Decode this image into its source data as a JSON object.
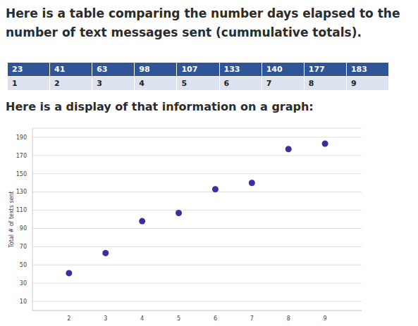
{
  "heading": "Here is a table comparing the number days elapsed to the number of text messages sent (cummulative totals).",
  "table": {
    "rows": [
      [
        23,
        41,
        63,
        98,
        107,
        133,
        140,
        177,
        183
      ],
      [
        1,
        2,
        3,
        4,
        5,
        6,
        7,
        8,
        9
      ]
    ]
  },
  "caption": "Here is a display of that information on a graph:",
  "chart_data": {
    "type": "scatter",
    "y_label": "Total # of texts sent",
    "x": [
      2,
      3,
      4,
      5,
      6,
      7,
      8,
      9
    ],
    "values": [
      41,
      63,
      98,
      107,
      133,
      140,
      177,
      183
    ],
    "color": "#3b2f9e",
    "marker": "circle",
    "xlim": [
      1,
      10
    ],
    "xticks": [
      2,
      3,
      4,
      5,
      6,
      7,
      8,
      9
    ],
    "ylim": [
      0,
      200
    ],
    "yticks": [
      10,
      30,
      50,
      70,
      90,
      110,
      130,
      150,
      170,
      190
    ],
    "grid": true
  }
}
